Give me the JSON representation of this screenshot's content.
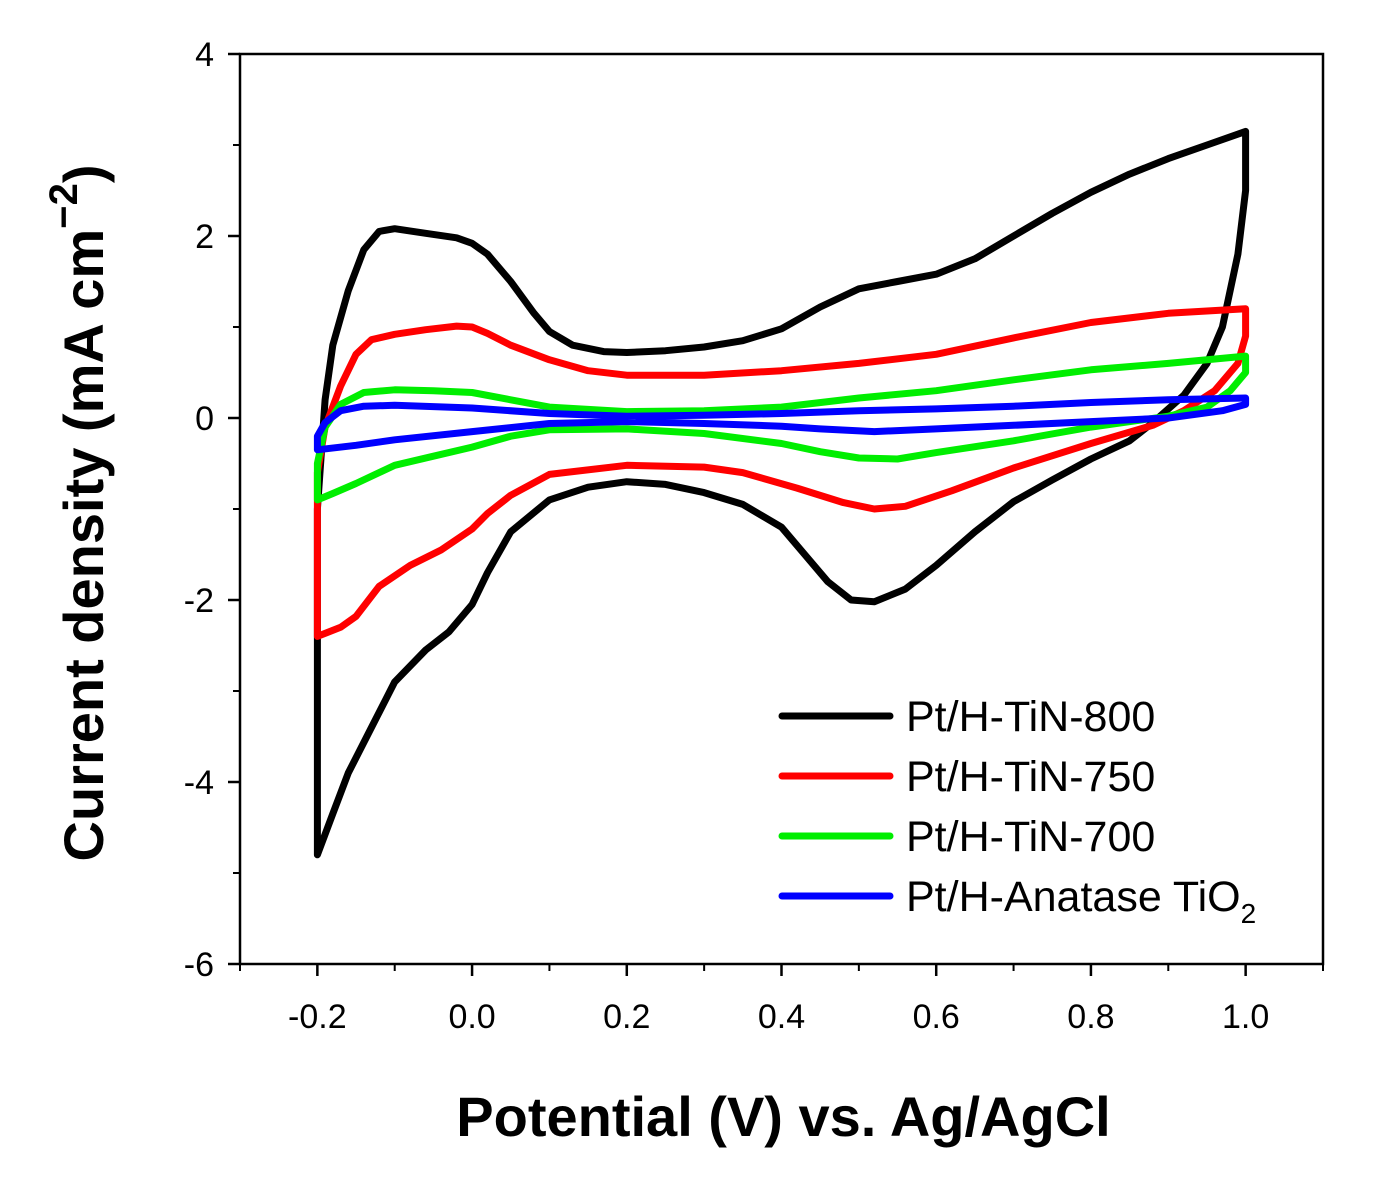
{
  "chart_data": {
    "type": "line",
    "title": "",
    "xlabel": "Potential (V) vs. Ag/AgCl",
    "ylabel": "Current density (mA cm",
    "ylabel_superscript": "−2",
    "xlim": [
      -0.3,
      1.1
    ],
    "ylim": [
      -6,
      4
    ],
    "xticks": [
      -0.2,
      0.0,
      0.2,
      0.4,
      0.6,
      0.8,
      1.0
    ],
    "xtick_labels": [
      "-0.2",
      "0.0",
      "0.2",
      "0.4",
      "0.6",
      "0.8",
      "1.0"
    ],
    "yticks": [
      -6,
      -4,
      -2,
      0,
      2,
      4
    ],
    "ytick_labels": [
      "-6",
      "-4",
      "-2",
      "0",
      "2",
      "4"
    ],
    "grid": false,
    "legend_position": "bottom-right",
    "series": [
      {
        "name": "Pt/H-TiN-800",
        "color": "#000000",
        "points": [
          [
            -0.2,
            -4.8
          ],
          [
            -0.2,
            -3.0
          ],
          [
            -0.2,
            -1.0
          ],
          [
            -0.19,
            0.2
          ],
          [
            -0.18,
            0.8
          ],
          [
            -0.16,
            1.4
          ],
          [
            -0.14,
            1.85
          ],
          [
            -0.12,
            2.05
          ],
          [
            -0.1,
            2.08
          ],
          [
            -0.06,
            2.03
          ],
          [
            -0.02,
            1.98
          ],
          [
            0.0,
            1.92
          ],
          [
            0.02,
            1.8
          ],
          [
            0.05,
            1.5
          ],
          [
            0.08,
            1.15
          ],
          [
            0.1,
            0.95
          ],
          [
            0.13,
            0.8
          ],
          [
            0.17,
            0.73
          ],
          [
            0.2,
            0.72
          ],
          [
            0.25,
            0.74
          ],
          [
            0.3,
            0.78
          ],
          [
            0.35,
            0.85
          ],
          [
            0.4,
            0.98
          ],
          [
            0.45,
            1.22
          ],
          [
            0.5,
            1.42
          ],
          [
            0.55,
            1.5
          ],
          [
            0.6,
            1.58
          ],
          [
            0.65,
            1.75
          ],
          [
            0.7,
            2.0
          ],
          [
            0.75,
            2.25
          ],
          [
            0.8,
            2.48
          ],
          [
            0.85,
            2.68
          ],
          [
            0.9,
            2.85
          ],
          [
            0.95,
            3.0
          ],
          [
            1.0,
            3.15
          ],
          [
            1.0,
            2.5
          ],
          [
            0.99,
            1.8
          ],
          [
            0.97,
            1.0
          ],
          [
            0.95,
            0.6
          ],
          [
            0.92,
            0.25
          ],
          [
            0.88,
            -0.05
          ],
          [
            0.85,
            -0.25
          ],
          [
            0.8,
            -0.45
          ],
          [
            0.75,
            -0.68
          ],
          [
            0.7,
            -0.92
          ],
          [
            0.65,
            -1.25
          ],
          [
            0.6,
            -1.62
          ],
          [
            0.56,
            -1.88
          ],
          [
            0.52,
            -2.02
          ],
          [
            0.49,
            -2.0
          ],
          [
            0.46,
            -1.8
          ],
          [
            0.43,
            -1.5
          ],
          [
            0.4,
            -1.2
          ],
          [
            0.35,
            -0.95
          ],
          [
            0.3,
            -0.82
          ],
          [
            0.25,
            -0.73
          ],
          [
            0.2,
            -0.7
          ],
          [
            0.15,
            -0.76
          ],
          [
            0.1,
            -0.9
          ],
          [
            0.05,
            -1.25
          ],
          [
            0.02,
            -1.7
          ],
          [
            0.0,
            -2.05
          ],
          [
            -0.03,
            -2.35
          ],
          [
            -0.06,
            -2.55
          ],
          [
            -0.1,
            -2.9
          ],
          [
            -0.13,
            -3.4
          ],
          [
            -0.16,
            -3.9
          ],
          [
            -0.18,
            -4.35
          ],
          [
            -0.2,
            -4.8
          ]
        ]
      },
      {
        "name": "Pt/H-TiN-750",
        "color": "#ff0000",
        "points": [
          [
            -0.2,
            -2.4
          ],
          [
            -0.2,
            -1.5
          ],
          [
            -0.2,
            -0.6
          ],
          [
            -0.19,
            -0.1
          ],
          [
            -0.17,
            0.35
          ],
          [
            -0.15,
            0.7
          ],
          [
            -0.13,
            0.86
          ],
          [
            -0.1,
            0.92
          ],
          [
            -0.06,
            0.97
          ],
          [
            -0.02,
            1.01
          ],
          [
            0.0,
            1.0
          ],
          [
            0.02,
            0.93
          ],
          [
            0.05,
            0.8
          ],
          [
            0.1,
            0.64
          ],
          [
            0.15,
            0.52
          ],
          [
            0.2,
            0.47
          ],
          [
            0.3,
            0.47
          ],
          [
            0.4,
            0.52
          ],
          [
            0.5,
            0.6
          ],
          [
            0.6,
            0.7
          ],
          [
            0.7,
            0.88
          ],
          [
            0.8,
            1.05
          ],
          [
            0.9,
            1.15
          ],
          [
            1.0,
            1.2
          ],
          [
            1.0,
            0.9
          ],
          [
            0.99,
            0.6
          ],
          [
            0.96,
            0.3
          ],
          [
            0.92,
            0.08
          ],
          [
            0.88,
            -0.08
          ],
          [
            0.8,
            -0.28
          ],
          [
            0.7,
            -0.55
          ],
          [
            0.62,
            -0.8
          ],
          [
            0.56,
            -0.97
          ],
          [
            0.52,
            -1.0
          ],
          [
            0.48,
            -0.93
          ],
          [
            0.42,
            -0.77
          ],
          [
            0.35,
            -0.6
          ],
          [
            0.3,
            -0.54
          ],
          [
            0.2,
            -0.52
          ],
          [
            0.1,
            -0.62
          ],
          [
            0.05,
            -0.85
          ],
          [
            0.02,
            -1.05
          ],
          [
            0.0,
            -1.22
          ],
          [
            -0.04,
            -1.45
          ],
          [
            -0.08,
            -1.62
          ],
          [
            -0.12,
            -1.85
          ],
          [
            -0.15,
            -2.18
          ],
          [
            -0.17,
            -2.3
          ],
          [
            -0.2,
            -2.4
          ]
        ]
      },
      {
        "name": "Pt/H-TiN-700",
        "color": "#00ee00",
        "points": [
          [
            -0.2,
            -0.9
          ],
          [
            -0.2,
            -0.5
          ],
          [
            -0.19,
            -0.1
          ],
          [
            -0.17,
            0.15
          ],
          [
            -0.14,
            0.28
          ],
          [
            -0.1,
            0.31
          ],
          [
            -0.05,
            0.3
          ],
          [
            0.0,
            0.28
          ],
          [
            0.05,
            0.2
          ],
          [
            0.1,
            0.12
          ],
          [
            0.2,
            0.07
          ],
          [
            0.3,
            0.08
          ],
          [
            0.4,
            0.12
          ],
          [
            0.5,
            0.22
          ],
          [
            0.6,
            0.3
          ],
          [
            0.7,
            0.42
          ],
          [
            0.8,
            0.53
          ],
          [
            0.9,
            0.6
          ],
          [
            1.0,
            0.68
          ],
          [
            1.0,
            0.5
          ],
          [
            0.98,
            0.3
          ],
          [
            0.95,
            0.12
          ],
          [
            0.9,
            0.02
          ],
          [
            0.8,
            -0.1
          ],
          [
            0.7,
            -0.25
          ],
          [
            0.6,
            -0.38
          ],
          [
            0.55,
            -0.45
          ],
          [
            0.5,
            -0.44
          ],
          [
            0.45,
            -0.37
          ],
          [
            0.4,
            -0.28
          ],
          [
            0.3,
            -0.17
          ],
          [
            0.2,
            -0.12
          ],
          [
            0.1,
            -0.13
          ],
          [
            0.05,
            -0.2
          ],
          [
            0.0,
            -0.32
          ],
          [
            -0.05,
            -0.42
          ],
          [
            -0.1,
            -0.52
          ],
          [
            -0.15,
            -0.72
          ],
          [
            -0.18,
            -0.83
          ],
          [
            -0.2,
            -0.9
          ]
        ]
      },
      {
        "name": "Pt/H-Anatase TiO",
        "name_sub": "2",
        "color": "#0000ff",
        "points": [
          [
            -0.2,
            -0.35
          ],
          [
            -0.2,
            -0.2
          ],
          [
            -0.19,
            -0.05
          ],
          [
            -0.17,
            0.08
          ],
          [
            -0.14,
            0.13
          ],
          [
            -0.1,
            0.14
          ],
          [
            0.0,
            0.11
          ],
          [
            0.1,
            0.05
          ],
          [
            0.2,
            0.02
          ],
          [
            0.3,
            0.03
          ],
          [
            0.4,
            0.05
          ],
          [
            0.5,
            0.08
          ],
          [
            0.6,
            0.1
          ],
          [
            0.7,
            0.13
          ],
          [
            0.8,
            0.17
          ],
          [
            0.9,
            0.2
          ],
          [
            1.0,
            0.22
          ],
          [
            1.0,
            0.15
          ],
          [
            0.97,
            0.08
          ],
          [
            0.9,
            0.0
          ],
          [
            0.8,
            -0.04
          ],
          [
            0.7,
            -0.08
          ],
          [
            0.6,
            -0.12
          ],
          [
            0.52,
            -0.15
          ],
          [
            0.45,
            -0.12
          ],
          [
            0.4,
            -0.09
          ],
          [
            0.3,
            -0.06
          ],
          [
            0.2,
            -0.04
          ],
          [
            0.1,
            -0.06
          ],
          [
            0.0,
            -0.15
          ],
          [
            -0.1,
            -0.24
          ],
          [
            -0.15,
            -0.3
          ],
          [
            -0.2,
            -0.35
          ]
        ]
      }
    ]
  }
}
